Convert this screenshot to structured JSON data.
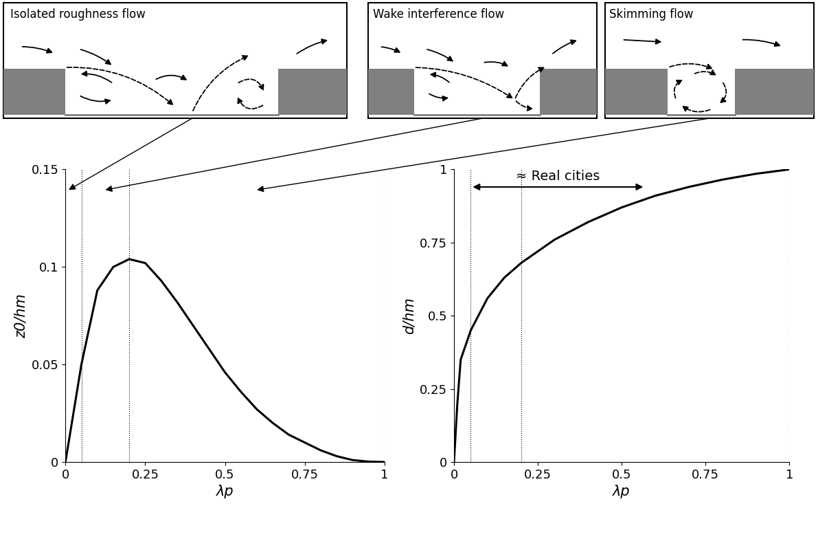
{
  "panels": [
    {
      "title": "Isolated roughness flow"
    },
    {
      "title": "Wake interference flow"
    },
    {
      "title": "Skimming flow"
    }
  ],
  "chart_data": [
    {
      "type": "line",
      "xlabel": "λp",
      "ylabel": "z0/hm",
      "color": "#000000",
      "x": [
        0,
        0.05,
        0.1,
        0.15,
        0.2,
        0.25,
        0.3,
        0.35,
        0.4,
        0.45,
        0.5,
        0.55,
        0.6,
        0.65,
        0.7,
        0.75,
        0.8,
        0.85,
        0.9,
        0.95,
        1
      ],
      "values": [
        0,
        0.05,
        0.088,
        0.1,
        0.104,
        0.102,
        0.093,
        0.082,
        0.07,
        0.058,
        0.046,
        0.036,
        0.027,
        0.02,
        0.014,
        0.01,
        0.006,
        0.003,
        0.001,
        0.0002,
        0
      ],
      "xlim": [
        0,
        1
      ],
      "xticks": [
        0,
        0.25,
        0.5,
        0.75,
        1
      ],
      "ylim": [
        0,
        0.15
      ],
      "yticks": [
        0,
        0.05,
        0.1,
        0.15
      ],
      "reference_lines": [
        0.05,
        0.2,
        1
      ],
      "grid": false
    },
    {
      "type": "line",
      "xlabel": "λp",
      "ylabel": "d/hm",
      "color": "#000000",
      "x": [
        0,
        0.01,
        0.02,
        0.05,
        0.1,
        0.15,
        0.2,
        0.3,
        0.4,
        0.5,
        0.6,
        0.7,
        0.8,
        0.9,
        1
      ],
      "values": [
        0,
        0.2,
        0.35,
        0.45,
        0.56,
        0.63,
        0.68,
        0.76,
        0.82,
        0.87,
        0.91,
        0.94,
        0.965,
        0.985,
        1
      ],
      "xlim": [
        0,
        1
      ],
      "xticks": [
        0,
        0.25,
        0.5,
        0.75,
        1
      ],
      "ylim": [
        0,
        1
      ],
      "yticks": [
        0,
        0.25,
        0.5,
        0.75,
        1
      ],
      "reference_lines": [
        0.05,
        0.2,
        1
      ],
      "grid": false,
      "annotation": {
        "text": "≈ Real cities",
        "x_from": 0.05,
        "x_to": 0.57,
        "y": 0.94
      }
    }
  ]
}
